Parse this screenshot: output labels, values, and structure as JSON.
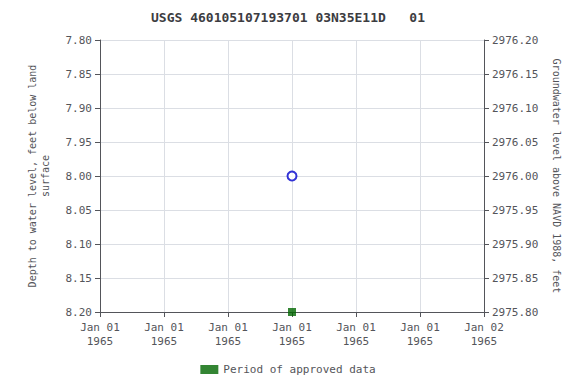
{
  "chart_data": {
    "type": "scatter",
    "title": "USGS 460105107193701 03N35E11D   01",
    "x_label": null,
    "y_label": "Depth to water level, feet below land\nsurface",
    "y2_label": "Groundwater level above NAVD 1988, feet",
    "categories": [
      "Jan 01\n1965",
      "Jan 01\n1965",
      "Jan 01\n1965",
      "Jan 01\n1965",
      "Jan 01\n1965",
      "Jan 01\n1965",
      "Jan 02\n1965"
    ],
    "series": [
      {
        "color": "#0000cc",
        "marker": "hollow_circle",
        "values": [
          null,
          null,
          null,
          8.0,
          null,
          null,
          null
        ]
      },
      {
        "name": "Period of approved data",
        "color": "#006600",
        "marker": "square",
        "values": [
          null,
          null,
          null,
          8.2,
          null,
          null,
          null
        ]
      }
    ],
    "ylim": [
      8.2,
      7.8
    ],
    "yticks": [
      {
        "value": 7.8,
        "label": "7.80"
      },
      {
        "value": 7.85,
        "label": "7.85"
      },
      {
        "value": 7.9,
        "label": "7.90"
      },
      {
        "value": 7.95,
        "label": "7.95"
      },
      {
        "value": 8.0,
        "label": "8.00"
      },
      {
        "value": 8.05,
        "label": "8.05"
      },
      {
        "value": 8.1,
        "label": "8.10"
      },
      {
        "value": 8.15,
        "label": "8.15"
      },
      {
        "value": 8.2,
        "label": "8.20"
      }
    ],
    "y2lim": [
      2975.8,
      2976.2
    ],
    "y2ticks": [
      {
        "value": 2976.2,
        "label": "2976.20"
      },
      {
        "value": 2976.15,
        "label": "2976.15"
      },
      {
        "value": 2976.1,
        "label": "2976.10"
      },
      {
        "value": 2976.05,
        "label": "2976.05"
      },
      {
        "value": 2976.0,
        "label": "2976.00"
      },
      {
        "value": 2975.95,
        "label": "2975.95"
      },
      {
        "value": 2975.9,
        "label": "2975.90"
      },
      {
        "value": 2975.85,
        "label": "2975.85"
      },
      {
        "value": 2975.8,
        "label": "2975.80"
      }
    ],
    "grid": true,
    "legend": "bottom"
  }
}
